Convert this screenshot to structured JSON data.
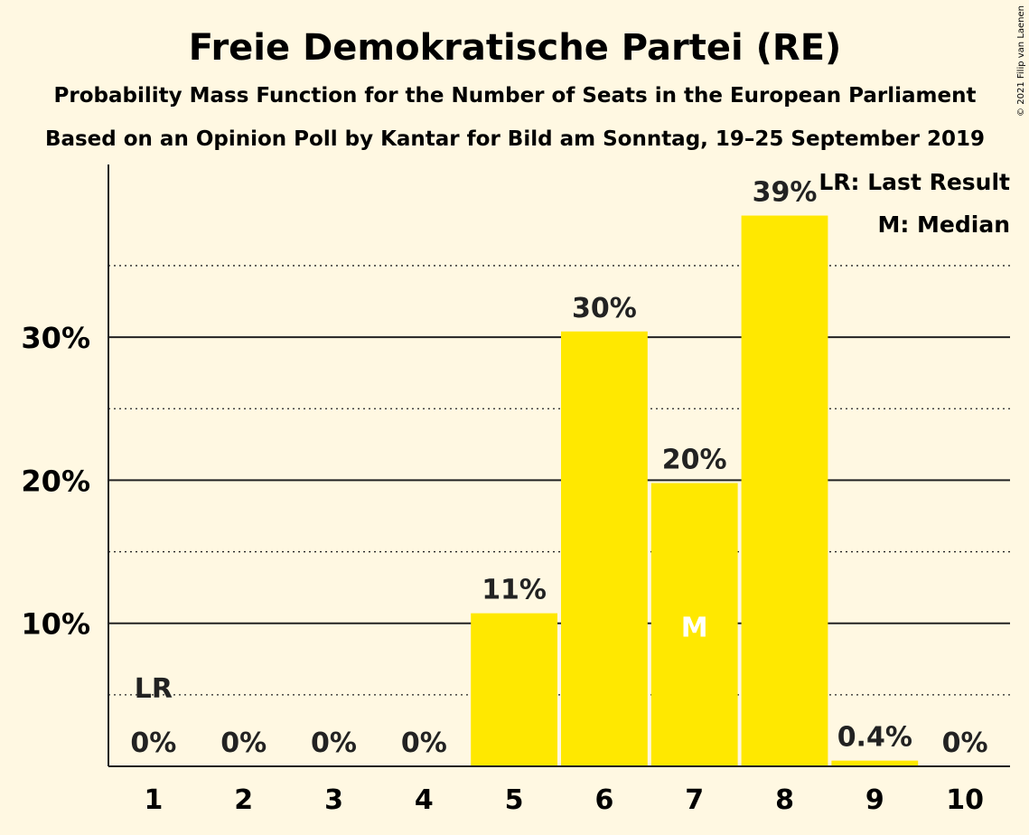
{
  "chart_data": {
    "type": "bar",
    "title": "Freie Demokratische Partei (RE)",
    "subtitle": "Probability Mass Function for the Number of Seats in the European Parliament",
    "subtitle2": "Based on an Opinion Poll by Kantar for Bild am Sonntag, 19–25 September 2019",
    "categories": [
      "1",
      "2",
      "3",
      "4",
      "5",
      "6",
      "7",
      "8",
      "9",
      "10"
    ],
    "values": [
      0,
      0,
      0,
      0,
      10.7,
      30.4,
      19.8,
      38.5,
      0.4,
      0
    ],
    "value_labels": [
      "0%",
      "0%",
      "0%",
      "0%",
      "11%",
      "30%",
      "20%",
      "39%",
      "0.4%",
      "0%"
    ],
    "yticks": [
      10,
      20,
      30
    ],
    "ytick_labels": [
      "10%",
      "20%",
      "30%"
    ],
    "ylim": [
      0,
      42
    ],
    "last_result": {
      "category": "1",
      "label": "LR"
    },
    "median": {
      "category": "7",
      "label": "M"
    },
    "legend": [
      "LR: Last Result",
      "M: Median"
    ],
    "legend_position": "top-right",
    "copyright": "© 2021 Filip van Laenen",
    "colors": {
      "bar": "#ffe800",
      "background": "#fff8e2",
      "text": "#222222",
      "median_text": "#ffffff"
    }
  }
}
